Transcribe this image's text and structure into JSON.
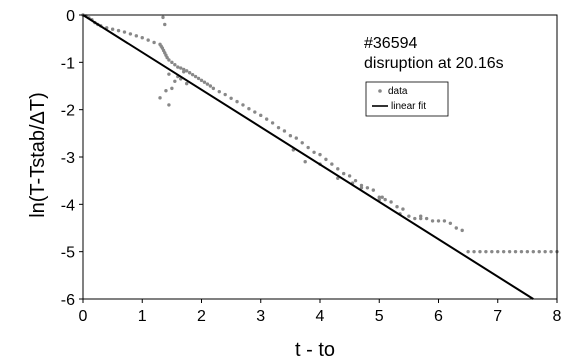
{
  "chart_data": {
    "type": "scatter",
    "title": "",
    "xlabel": "t - to",
    "ylabel": "ln(T-Tstab/ΔT)",
    "xlim": [
      0,
      8
    ],
    "ylim": [
      -6,
      0
    ],
    "x_ticks": [
      "0",
      "1",
      "2",
      "3",
      "4",
      "5",
      "6",
      "7",
      "8"
    ],
    "y_ticks": [
      "0",
      "-1",
      "-2",
      "-3",
      "-4",
      "-5",
      "-6"
    ],
    "grid": false,
    "legend_position": "right-upper",
    "annotations": [
      "#36594",
      "disruption at 20.16s"
    ],
    "series": [
      {
        "name": "data",
        "kind": "scatter",
        "color": "#888888",
        "x": [
          0.0,
          0.05,
          0.1,
          0.15,
          0.2,
          0.25,
          0.3,
          0.4,
          0.5,
          0.6,
          0.7,
          0.8,
          0.9,
          1.0,
          1.1,
          1.2,
          1.3,
          1.32,
          1.34,
          1.36,
          1.38,
          1.4,
          1.42,
          1.45,
          1.5,
          1.55,
          1.6,
          1.65,
          1.7,
          1.75,
          1.8,
          1.85,
          1.9,
          1.95,
          2.0,
          2.05,
          2.1,
          2.15,
          2.2,
          2.3,
          2.4,
          2.5,
          2.6,
          2.7,
          2.8,
          2.9,
          3.0,
          3.1,
          3.2,
          3.3,
          3.4,
          3.5,
          3.6,
          3.7,
          3.8,
          3.9,
          4.0,
          4.1,
          4.2,
          4.3,
          4.4,
          4.5,
          4.6,
          4.7,
          4.8,
          4.9,
          5.0,
          5.1,
          5.2,
          5.3,
          5.4,
          5.5,
          5.6,
          5.7,
          5.8,
          5.9,
          6.0,
          6.1,
          6.2,
          6.3,
          6.4,
          6.5,
          6.6,
          6.7,
          6.8,
          6.9,
          7.0,
          7.1,
          7.2,
          7.3,
          7.4,
          7.5,
          7.6,
          7.7,
          7.8,
          7.9,
          8.0,
          1.35,
          1.38,
          1.3,
          1.45,
          1.5,
          1.55,
          1.6,
          1.7,
          1.75,
          1.4,
          1.45,
          1.65,
          3.55,
          3.75,
          4.0,
          4.3,
          4.55,
          4.7,
          5.0,
          5.05,
          5.35,
          5.7
        ],
        "y": [
          0.0,
          -0.02,
          -0.06,
          -0.1,
          -0.16,
          -0.2,
          -0.23,
          -0.27,
          -0.3,
          -0.33,
          -0.36,
          -0.4,
          -0.44,
          -0.48,
          -0.53,
          -0.58,
          -0.62,
          -0.66,
          -0.7,
          -0.75,
          -0.8,
          -0.85,
          -0.9,
          -0.95,
          -1.0,
          -1.05,
          -1.1,
          -1.12,
          -1.15,
          -1.18,
          -1.22,
          -1.26,
          -1.3,
          -1.34,
          -1.38,
          -1.42,
          -1.46,
          -1.5,
          -1.55,
          -1.62,
          -1.68,
          -1.76,
          -1.83,
          -1.9,
          -1.98,
          -2.05,
          -2.12,
          -2.2,
          -2.28,
          -2.38,
          -2.45,
          -2.55,
          -2.6,
          -2.7,
          -2.8,
          -2.9,
          -2.95,
          -3.05,
          -3.15,
          -3.25,
          -3.35,
          -3.4,
          -3.5,
          -3.6,
          -3.65,
          -3.7,
          -3.85,
          -3.9,
          -3.95,
          -4.05,
          -4.1,
          -4.25,
          -4.3,
          -4.3,
          -4.3,
          -4.35,
          -4.35,
          -4.35,
          -4.4,
          -4.5,
          -4.55,
          -5.0,
          -5.0,
          -5.0,
          -5.0,
          -5.0,
          -5.0,
          -5.0,
          -5.0,
          -5.0,
          -5.0,
          -5.0,
          -5.0,
          -5.0,
          -5.0,
          -5.0,
          -5.0,
          -0.05,
          -0.2,
          -1.75,
          -1.9,
          -1.55,
          -1.4,
          -1.3,
          -1.2,
          -1.45,
          -1.6,
          -1.25,
          -1.35,
          -2.85,
          -3.1,
          -3.15,
          -3.45,
          -3.55,
          -3.65,
          -3.9,
          -3.85,
          -4.2,
          -4.25
        ]
      },
      {
        "name": "linear fit",
        "kind": "line",
        "color": "#000000",
        "x": [
          0,
          7.6
        ],
        "y": [
          0,
          -6.0
        ]
      }
    ]
  }
}
